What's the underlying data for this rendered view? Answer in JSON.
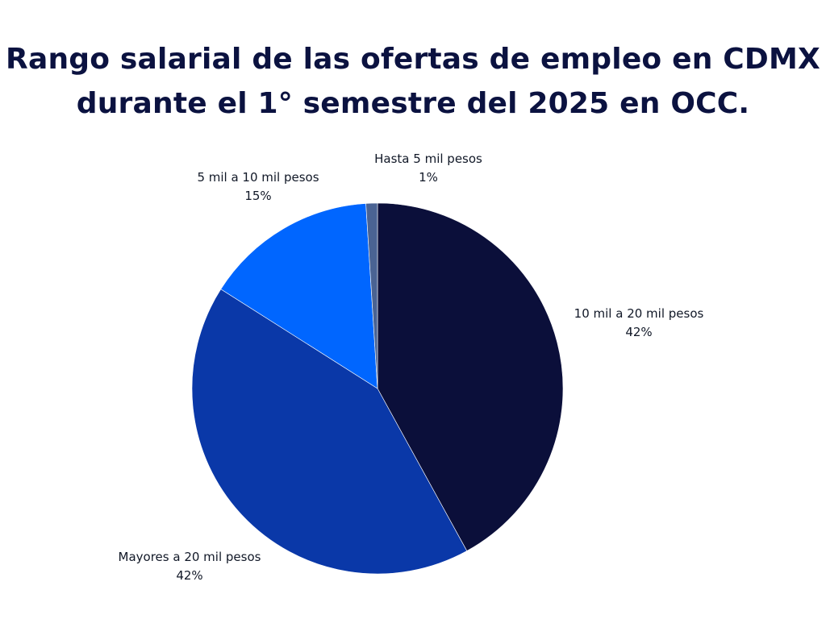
{
  "chart_data": {
    "type": "pie",
    "title_lines": [
      "Rango salarial de las ofertas de empleo en CDMX",
      "durante el 1° semestre del 2025 en OCC."
    ],
    "start_angle_deg": 0,
    "direction": "clockwise",
    "slices": [
      {
        "label": "10 mil a 20 mil pesos",
        "value": 42,
        "value_label": "42%",
        "color": "#0b0f3a"
      },
      {
        "label": "Mayores a 20 mil pesos",
        "value": 42,
        "value_label": "42%",
        "color": "#0a38a8"
      },
      {
        "label": "5 mil a 10 mil pesos",
        "value": 15,
        "value_label": "15%",
        "color": "#0066ff"
      },
      {
        "label": "Hasta 5 mil pesos",
        "value": 1,
        "value_label": "1%",
        "color": "#4a6393"
      }
    ]
  }
}
